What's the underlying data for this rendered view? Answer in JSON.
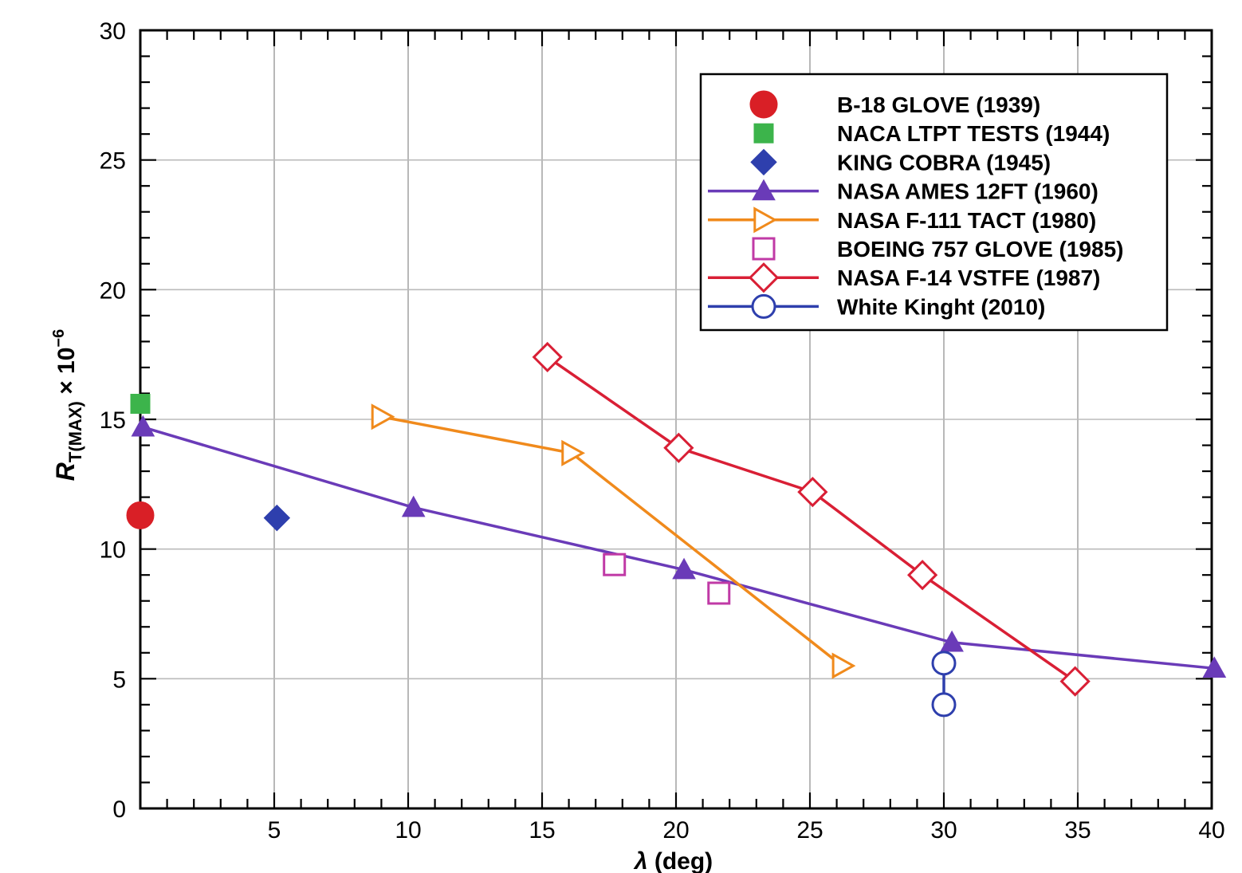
{
  "chart_data": {
    "type": "scatter",
    "title": "",
    "xlabel_symbol": "λ",
    "xlabel_unit": " (deg)",
    "ylabel_main": "R",
    "ylabel_sub": "T(MAX)",
    "ylabel_rest": " × 10",
    "ylabel_exp": "−6",
    "xlim": [
      0,
      40
    ],
    "ylim": [
      0,
      30
    ],
    "x_ticks": [
      5,
      10,
      15,
      20,
      25,
      30,
      35,
      40
    ],
    "x_tick_labels": [
      "5",
      "10",
      "15",
      "20",
      "25",
      "30",
      "35",
      "40"
    ],
    "y_ticks": [
      0,
      5,
      10,
      15,
      20,
      25,
      30
    ],
    "y_tick_labels": [
      "0",
      "5",
      "10",
      "15",
      "20",
      "25",
      "30"
    ],
    "grid": true,
    "legend_position": "top-right",
    "series": [
      {
        "name": "B-18 GLOVE (1939)",
        "marker": "circle",
        "filled": true,
        "line": false,
        "color": "#d91f26",
        "points": [
          [
            0,
            11.3
          ]
        ]
      },
      {
        "name": "NACA LTPT TESTS (1944)",
        "marker": "square",
        "filled": true,
        "line": false,
        "color": "#3cb44b",
        "points": [
          [
            0,
            15.6
          ]
        ]
      },
      {
        "name": "KING COBRA (1945)",
        "marker": "diamond",
        "filled": true,
        "line": false,
        "color": "#2e3fad",
        "points": [
          [
            5.1,
            11.2
          ]
        ]
      },
      {
        "name": "NASA AMES 12FT (1960)",
        "marker": "triangle-up",
        "filled": true,
        "line": true,
        "color": "#6a3bb8",
        "points": [
          [
            0.1,
            14.7
          ],
          [
            10.2,
            11.6
          ],
          [
            20.3,
            9.2
          ],
          [
            30.3,
            6.4
          ],
          [
            40.1,
            5.4
          ]
        ]
      },
      {
        "name": "NASA F-111 TACT (1980)",
        "marker": "triangle-right",
        "filled": false,
        "line": true,
        "color": "#f08a1c",
        "points": [
          [
            9.0,
            15.1
          ],
          [
            16.1,
            13.7
          ],
          [
            26.2,
            5.5
          ]
        ]
      },
      {
        "name": "BOEING 757 GLOVE (1985)",
        "marker": "square",
        "filled": false,
        "line": false,
        "color": "#c03aa6",
        "points": [
          [
            17.7,
            9.4
          ],
          [
            21.6,
            8.3
          ]
        ]
      },
      {
        "name": "NASA F-14 VSTFE (1987)",
        "marker": "diamond",
        "filled": false,
        "line": true,
        "color": "#d91f35",
        "points": [
          [
            15.2,
            17.4
          ],
          [
            20.1,
            13.9
          ],
          [
            25.1,
            12.2
          ],
          [
            29.2,
            9.0
          ],
          [
            34.9,
            4.9
          ]
        ]
      },
      {
        "name": "White Kinght (2010)",
        "marker": "circle",
        "filled": false,
        "line": true,
        "color": "#2e3fad",
        "points": [
          [
            30.0,
            5.6
          ],
          [
            30.0,
            4.0
          ]
        ]
      }
    ]
  }
}
